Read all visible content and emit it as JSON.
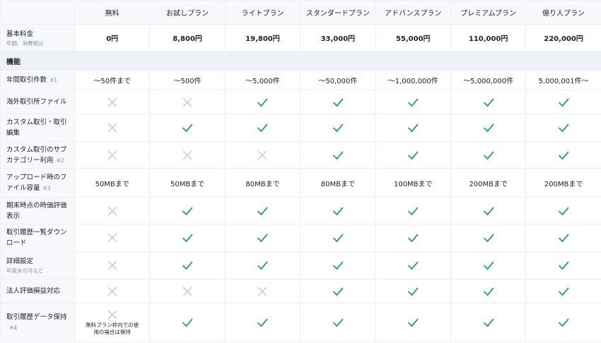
{
  "table": {
    "columns": [
      "無料",
      "お試しプラン",
      "ライトプラン",
      "スタンダードプラン",
      "アドバンスプラン",
      "プレミアムプラン",
      "億り人プラン"
    ],
    "fee": {
      "label": "基本料金",
      "note": "年額、消費税込",
      "cells": [
        "0円",
        "8,800円",
        "19,800円",
        "33,000円",
        "55,000円",
        "110,000円",
        "220,000円"
      ]
    },
    "section": "機能",
    "rows": [
      {
        "label": "年間取引件数",
        "mark": "※1",
        "cells": [
          "〜50件まで",
          "〜500件",
          "〜5,000件",
          "〜50,000件",
          "〜1,000,000件",
          "〜5,000,000件",
          "5,000,001件〜"
        ]
      },
      {
        "label": "海外取引所ファイル",
        "cells": [
          false,
          false,
          true,
          true,
          true,
          true,
          true
        ]
      },
      {
        "label": "カスタム取引・取引編集",
        "cells": [
          false,
          true,
          true,
          true,
          true,
          true,
          true
        ]
      },
      {
        "label": "カスタム取引のサブカテゴリー利用",
        "mark": "※2",
        "cells": [
          false,
          false,
          false,
          true,
          true,
          true,
          true
        ]
      },
      {
        "label": "アップロード時のファイル容量",
        "mark": "※3",
        "cells": [
          "50MBまで",
          "50MBまで",
          "80MBまで",
          "80MBまで",
          "100MBまで",
          "200MBまで",
          "200MBまで"
        ]
      },
      {
        "label": "期末時点の時価評価表示",
        "cells": [
          false,
          true,
          true,
          true,
          true,
          true,
          true
        ]
      },
      {
        "label": "取引履歴一覧ダウンロード",
        "cells": [
          false,
          true,
          true,
          true,
          true,
          true,
          true
        ]
      },
      {
        "label": "詳細設定",
        "note": "年度末の月など",
        "cells": [
          false,
          true,
          true,
          true,
          true,
          true,
          true
        ]
      },
      {
        "label": "法人評価損益対応",
        "cells": [
          false,
          false,
          false,
          true,
          true,
          true,
          true
        ]
      },
      {
        "label": "取引履歴データ保持",
        "mark": "※4",
        "cells": [
          {
            "available": false,
            "note": "無料プラン枠内での使用の場合は保持"
          },
          true,
          true,
          true,
          true,
          true,
          true
        ]
      }
    ]
  }
}
